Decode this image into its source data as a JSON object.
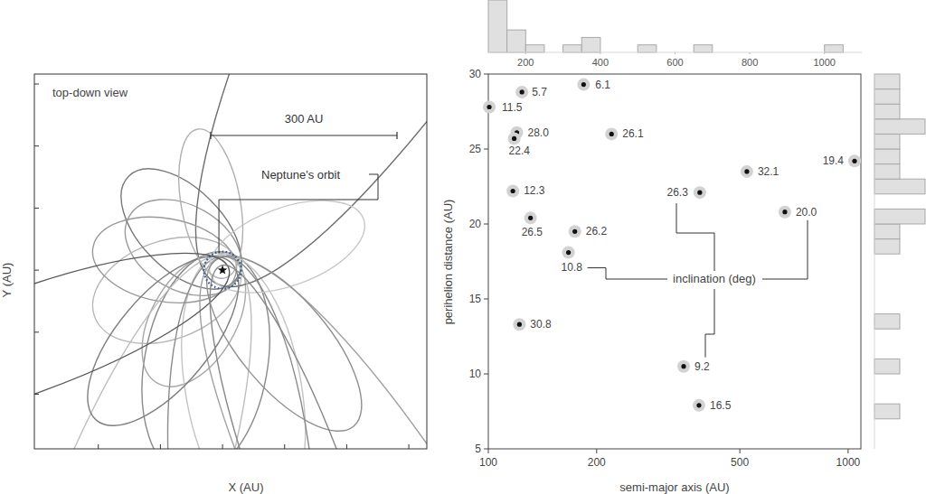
{
  "chart_data": [
    {
      "type": "orbits",
      "title": "top-down view",
      "x_label": "X (AU)",
      "y_label": "Y (AU)",
      "xlim": [
        -303,
        329
      ],
      "ylim": [
        -288,
        316
      ],
      "xticks": [
        -200,
        -100,
        0,
        100,
        200,
        300
      ],
      "yticks": [
        -200,
        -100,
        0,
        100,
        200,
        300
      ],
      "tick_labels": false,
      "scale_bar": {
        "value": 300,
        "label": "300 AU"
      },
      "neptune_radius": 30,
      "annotations": [
        {
          "text": "Neptune's orbit"
        }
      ],
      "perihelion_longitude": [
        330,
        20,
        80,
        315,
        60,
        100,
        240,
        350,
        70,
        95,
        120,
        200,
        130,
        50,
        280,
        20,
        110
      ],
      "colors": [
        "#9a9a9a",
        "#b5b5b5",
        "#8a8a8a",
        "#7a7a7a",
        "#a8a8a8",
        "#c4c4c4",
        "#6e6e6e",
        "#999999",
        "#bdbdbd",
        "#8c8c8c",
        "#a0a0a0",
        "#c8c8c8",
        "#909090",
        "#7f7f7f",
        "#b0b0b0",
        "#5a5a5a",
        "#888888"
      ]
    },
    {
      "type": "scatter",
      "x_label": "semi-major axis (AU)",
      "y_label": "perihelion distance (AU)",
      "log": "x",
      "xlim": [
        100,
        1085
      ],
      "ylim": [
        5,
        30
      ],
      "xticks": [
        100,
        200,
        500,
        1000
      ],
      "yticks": [
        5,
        10,
        15,
        20,
        25,
        30
      ],
      "annotations": [
        {
          "text": "inclination (deg)"
        }
      ],
      "series": [
        {
          "color": "#d2d2d2",
          "marker": "circle",
          "x": [
            100.6,
            124,
            184,
            120,
            118,
            220,
            1042,
            117,
            523,
            387,
            667,
            131,
            174,
            167,
            122,
            349,
            385
          ],
          "values": [
            27.8,
            28.8,
            29.3,
            26.1,
            25.7,
            26.0,
            24.2,
            22.2,
            23.5,
            22.1,
            20.8,
            20.4,
            19.5,
            18.1,
            13.3,
            10.5,
            7.9
          ],
          "inclination": [
            11.5,
            5.7,
            6.1,
            28.0,
            22.4,
            26.1,
            19.4,
            12.3,
            32.1,
            26.3,
            20.0,
            26.5,
            26.2,
            10.8,
            30.8,
            9.2,
            16.5
          ],
          "inclination_labels": [
            "11.5",
            "5.7",
            "6.1",
            "28.0",
            "22.4",
            "26.1",
            "19.4",
            "12.3",
            "32.1",
            "26.3",
            "20.0",
            "26.5",
            "26.2",
            "10.8",
            "30.8",
            "9.2",
            "16.5"
          ]
        }
      ]
    },
    {
      "type": "histogram",
      "bins": [
        100,
        150,
        200,
        250,
        300,
        350,
        400,
        450,
        500,
        550,
        600,
        650,
        700,
        750,
        800,
        850,
        900,
        950,
        1000,
        1050,
        1100
      ],
      "counts": [
        7,
        3,
        1,
        0,
        1,
        2,
        0,
        0,
        1,
        0,
        0,
        1,
        0,
        0,
        0,
        0,
        0,
        0,
        1,
        0
      ],
      "xlim": [
        100,
        1100
      ],
      "xticks": [
        200,
        400,
        600,
        800,
        1000
      ],
      "ylim": [
        0,
        7
      ],
      "tick_labels": "x",
      "color": "#e0e0e0"
    },
    {
      "type": "histogram",
      "orientation": "horizontal",
      "bins": [
        5,
        6,
        7,
        8,
        9,
        10,
        11,
        12,
        13,
        14,
        15,
        16,
        17,
        18,
        19,
        20,
        21,
        22,
        23,
        24,
        25,
        26,
        27,
        28,
        29,
        30
      ],
      "counts": [
        0,
        0,
        1,
        0,
        0,
        1,
        0,
        0,
        1,
        0,
        0,
        0,
        0,
        1,
        1,
        2,
        0,
        2,
        1,
        1,
        1,
        2,
        1,
        1,
        1
      ],
      "ylim": [
        5,
        30
      ],
      "xlim": [
        0,
        2
      ],
      "tick_labels": false,
      "color": "#e0e0e0"
    }
  ]
}
